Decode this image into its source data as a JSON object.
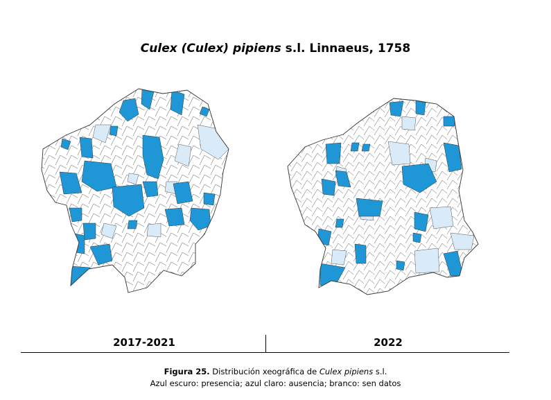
{
  "title": {
    "italic": "Culex (Culex) pipiens",
    "rest": " s.l. Linnaeus, 1758"
  },
  "maps": [
    {
      "period": "2017-2021"
    },
    {
      "period": "2022"
    }
  ],
  "legend_colors": {
    "presence": "#1f96d6",
    "absence": "#d9ebf8",
    "no_data": "#ffffff",
    "border": "#3a3a3a"
  },
  "caption": {
    "label": "Figura 25.",
    "text_before": " Distribución xeográfica de ",
    "species": "Culex pipiens",
    "text_after": " s.l.",
    "line2": "Azul escuro: presencia; azul claro: ausencia; branco: sen datos"
  }
}
